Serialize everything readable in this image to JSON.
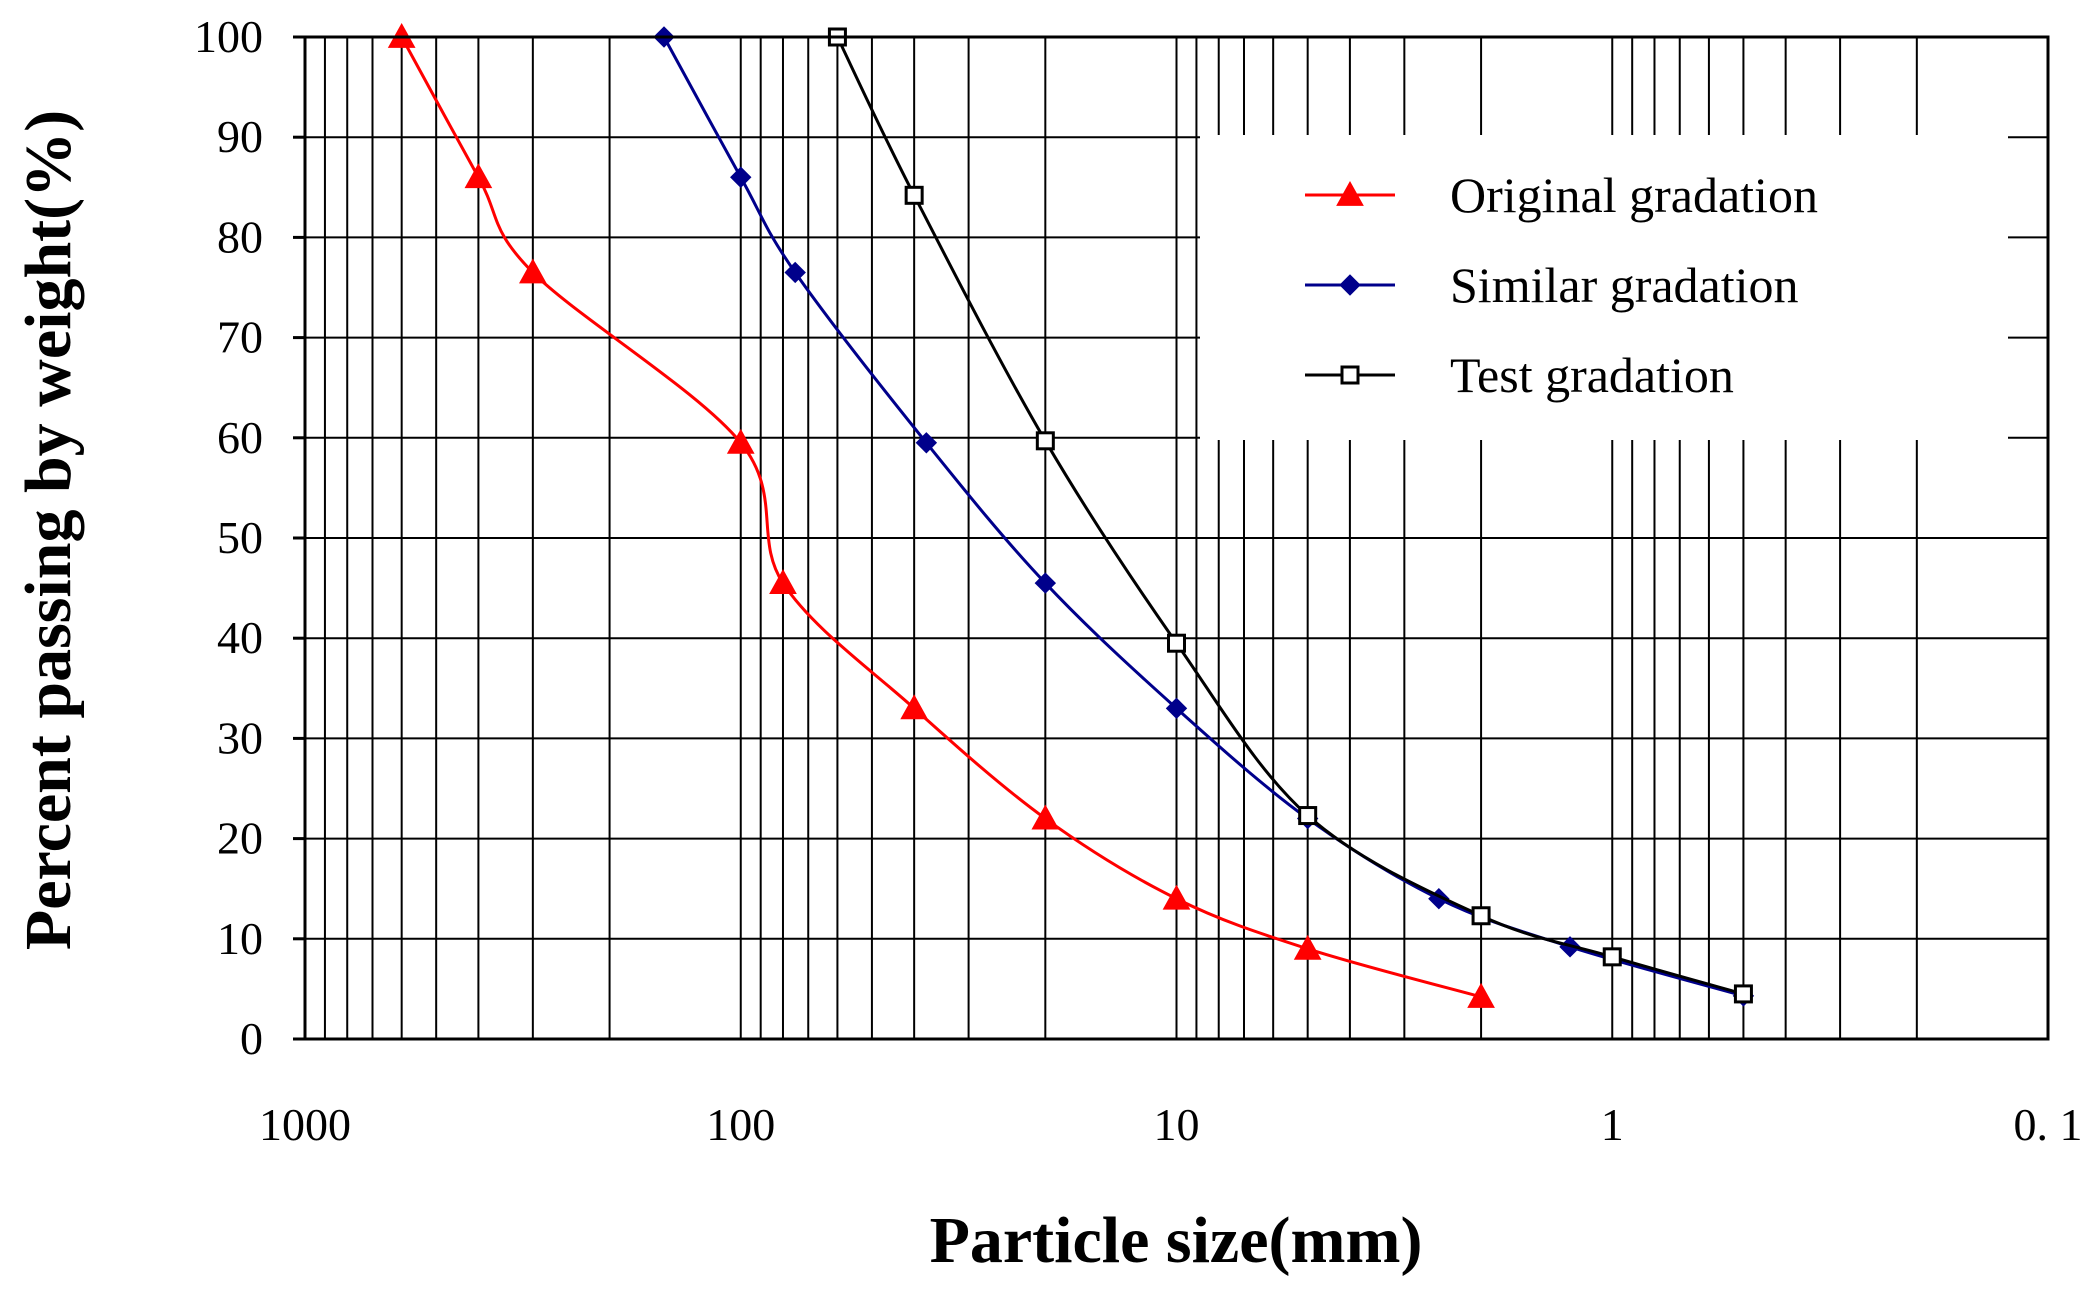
{
  "chart_data": {
    "type": "line",
    "title": "",
    "xlabel": "Particle size(mm)",
    "ylabel": "Percent passing by weight(%)",
    "x_scale": "log",
    "x_reversed": true,
    "xlim": [
      1000,
      0.1
    ],
    "ylim": [
      0,
      100
    ],
    "x_ticks": [
      {
        "value": 1000,
        "label": "1000"
      },
      {
        "value": 100,
        "label": "100"
      },
      {
        "value": 10,
        "label": "10"
      },
      {
        "value": 1,
        "label": "1"
      },
      {
        "value": 0.1,
        "label": "0. 1"
      }
    ],
    "y_ticks": [
      {
        "value": 0,
        "label": "0"
      },
      {
        "value": 10,
        "label": "10"
      },
      {
        "value": 20,
        "label": "20"
      },
      {
        "value": 30,
        "label": "30"
      },
      {
        "value": 40,
        "label": "40"
      },
      {
        "value": 50,
        "label": "50"
      },
      {
        "value": 60,
        "label": "60"
      },
      {
        "value": 70,
        "label": "70"
      },
      {
        "value": 80,
        "label": "80"
      },
      {
        "value": 90,
        "label": "90"
      },
      {
        "value": 100,
        "label": "100"
      }
    ],
    "grid": true,
    "legend_position": "top-right",
    "series": [
      {
        "name": "Original gradation",
        "color": "#ff0000",
        "marker": "triangle",
        "x": [
          600,
          400,
          300,
          100,
          80,
          40,
          20,
          10,
          5,
          2
        ],
        "y": [
          100,
          86,
          76.5,
          59.5,
          45.5,
          33,
          22,
          14,
          9,
          4.2
        ]
      },
      {
        "name": "Similar gradation",
        "color": "#00008b",
        "marker": "diamond",
        "x": [
          150,
          100,
          75,
          37.5,
          20,
          10,
          5,
          2.5,
          1.25,
          0.5
        ],
        "y": [
          100,
          86,
          76.5,
          59.5,
          45.5,
          33,
          22,
          14,
          9.2,
          4.3
        ]
      },
      {
        "name": "Test gradation",
        "color": "#000000",
        "marker": "square-open",
        "x": [
          60,
          40,
          20,
          10,
          5,
          2,
          1,
          0.5
        ],
        "y": [
          100,
          84.2,
          59.7,
          39.5,
          22.3,
          12.3,
          8.2,
          4.5
        ]
      }
    ]
  }
}
